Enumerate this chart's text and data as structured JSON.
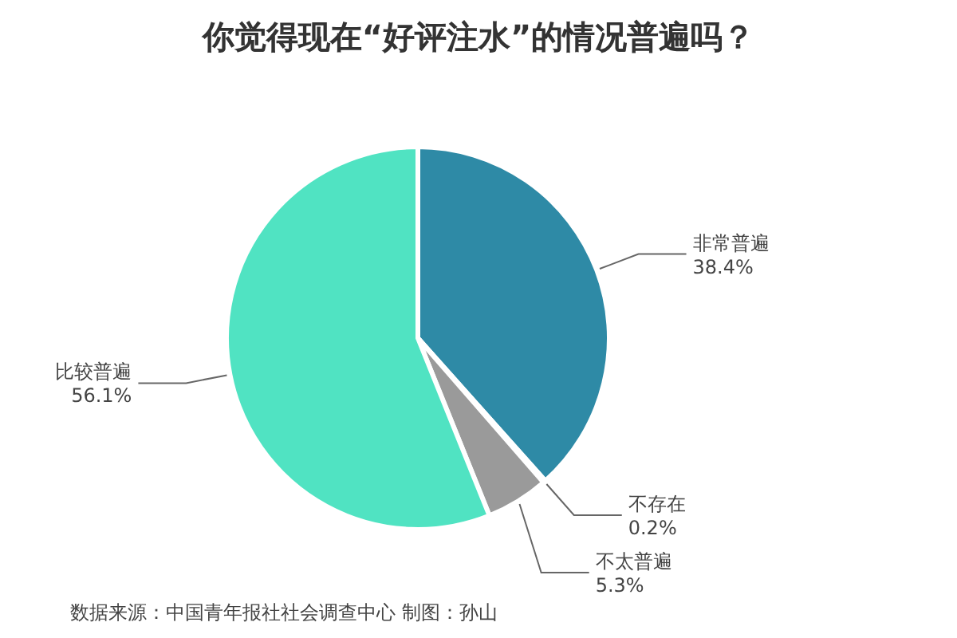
{
  "chart_data": {
    "type": "pie",
    "title": "你觉得现在“好评注水”的情况普遍吗？",
    "categories": [
      "非常普遍",
      "不存在",
      "不太普遍",
      "比较普遍"
    ],
    "values": [
      38.4,
      0.2,
      5.3,
      56.1
    ],
    "colors": [
      "#2e8aa6",
      "#b0b0b0",
      "#9a9a9a",
      "#50e3c2"
    ],
    "value_labels": [
      "38.4%",
      "0.2%",
      "5.3%",
      "56.1%"
    ],
    "annotations": [
      "数据来源：中国青年报社社会调查中心 制图：孙山"
    ]
  }
}
